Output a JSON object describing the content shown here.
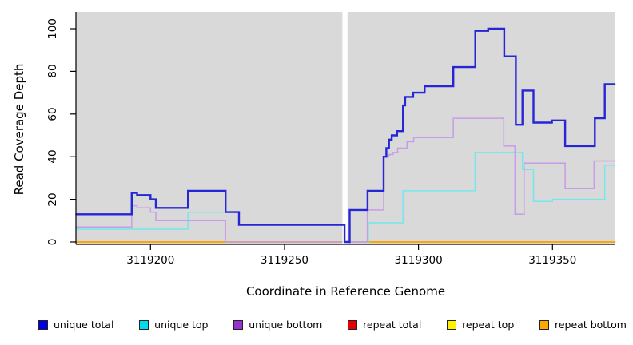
{
  "chart_data": {
    "type": "line",
    "style": "step",
    "title": "",
    "xlabel": "Coordinate in Reference Genome",
    "ylabel": "Read Coverage Depth",
    "x_ticks": [
      3119200,
      3119250,
      3119300,
      3119350
    ],
    "y_ticks": [
      0,
      20,
      40,
      60,
      80,
      100
    ],
    "xlim": [
      3119172,
      3119373.5
    ],
    "ylim": [
      -1,
      108
    ],
    "grid": false,
    "legend_position": "bottom",
    "plot_bg": "#d9d9d9",
    "gap_band": {
      "from": 3119271.6,
      "to": 3119273.5,
      "color": "#ffffff"
    },
    "series": [
      {
        "name": "unique total",
        "color": "#2626d4",
        "legend_color": "#0000e0",
        "width": 2.4,
        "steps": [
          [
            3119172,
            13
          ],
          [
            3119193,
            23
          ],
          [
            3119195,
            22
          ],
          [
            3119200,
            20
          ],
          [
            3119202,
            16
          ],
          [
            3119214,
            24
          ],
          [
            3119228,
            14
          ],
          [
            3119233,
            8
          ],
          [
            3119272.4,
            0
          ],
          [
            3119274.3,
            15
          ],
          [
            3119281,
            24
          ],
          [
            3119287,
            40
          ],
          [
            3119288,
            44
          ],
          [
            3119289,
            48
          ],
          [
            3119290,
            50
          ],
          [
            3119292,
            52
          ],
          [
            3119294.2,
            64
          ],
          [
            3119295,
            68
          ],
          [
            3119298,
            70
          ],
          [
            3119302.3,
            73
          ],
          [
            3119313,
            82
          ],
          [
            3119321.2,
            99
          ],
          [
            3119326,
            100
          ],
          [
            3119332,
            87
          ],
          [
            3119336.3,
            55
          ],
          [
            3119338.8,
            71
          ],
          [
            3119342.9,
            56
          ],
          [
            3119349.8,
            57
          ],
          [
            3119354.7,
            45
          ],
          [
            3119365.8,
            58
          ],
          [
            3119369.5,
            74
          ]
        ]
      },
      {
        "name": "unique top",
        "color": "#74e7ee",
        "legend_color": "#00dcec",
        "width": 1.5,
        "steps": [
          [
            3119172,
            6
          ],
          [
            3119214,
            14
          ],
          [
            3119233,
            8
          ],
          [
            3119272.4,
            0
          ],
          [
            3119281.3,
            9
          ],
          [
            3119294.2,
            24
          ],
          [
            3119321.1,
            42
          ],
          [
            3119338.8,
            34
          ],
          [
            3119342.9,
            19
          ],
          [
            3119350,
            20
          ],
          [
            3119369.5,
            36
          ]
        ]
      },
      {
        "name": "unique bottom",
        "color": "#c79ce8",
        "legend_color": "#9932cc",
        "width": 1.5,
        "steps": [
          [
            3119172,
            7
          ],
          [
            3119193,
            17
          ],
          [
            3119195,
            16
          ],
          [
            3119200,
            14
          ],
          [
            3119202,
            10
          ],
          [
            3119228,
            0
          ],
          [
            3119280.9,
            15
          ],
          [
            3119287,
            40
          ],
          [
            3119289,
            41
          ],
          [
            3119290.5,
            42
          ],
          [
            3119292.2,
            44
          ],
          [
            3119295.7,
            47
          ],
          [
            3119298.2,
            49
          ],
          [
            3119313,
            58
          ],
          [
            3119331.8,
            45
          ],
          [
            3119336,
            13
          ],
          [
            3119339.4,
            37
          ],
          [
            3119354.7,
            25
          ],
          [
            3119365.5,
            38
          ]
        ]
      },
      {
        "name": "repeat total",
        "color": "#e60000",
        "legend_color": "#e60000",
        "width": 1.4,
        "steps": [
          [
            3119172,
            0
          ]
        ]
      },
      {
        "name": "repeat top",
        "color": "#fff000",
        "legend_color": "#fff000",
        "width": 1.4,
        "steps": [
          [
            3119172,
            0
          ]
        ]
      },
      {
        "name": "repeat bottom",
        "color": "#ffa500",
        "legend_color": "#ffa500",
        "width": 1.8,
        "steps": [
          [
            3119172,
            0
          ]
        ]
      }
    ]
  },
  "layout_note": "coverage step plot"
}
